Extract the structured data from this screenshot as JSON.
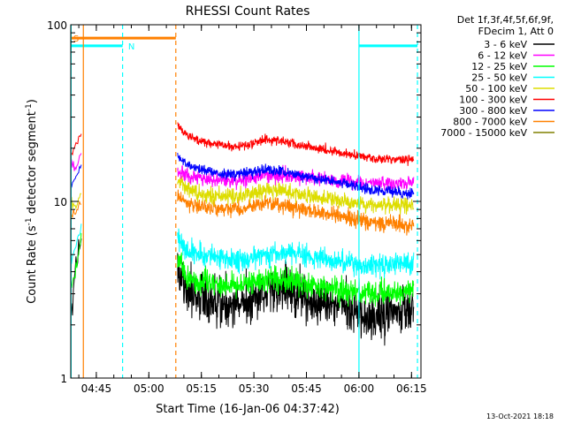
{
  "chart_data": {
    "type": "line",
    "title": "RHESSI Count Rates",
    "xlabel": "Start Time (16-Jan-06 04:37:42)",
    "ylabel": "Count Rate (s",
    "ylabel_sup": "-1",
    "ylabel_mid": " detector segment",
    "ylabel_end": ")",
    "y_scale": "log",
    "ylim": [
      1,
      100
    ],
    "xlim_minutes": [
      0,
      100
    ],
    "x_ticks": [
      {
        "label": "04:45",
        "min": 7.3
      },
      {
        "label": "05:00",
        "min": 22.3
      },
      {
        "label": "05:15",
        "min": 37.3
      },
      {
        "label": "05:30",
        "min": 52.3
      },
      {
        "label": "05:45",
        "min": 67.3
      },
      {
        "label": "06:00",
        "min": 82.3
      },
      {
        "label": "06:15",
        "min": 97.3
      }
    ],
    "y_ticks": [
      {
        "label": "1",
        "value": 1
      },
      {
        "label": "10",
        "value": 10
      },
      {
        "label": "100",
        "value": 100
      }
    ],
    "legend_header": [
      "Det 1f,3f,4f,5f,6f,9f,",
      "FDecim 1, Att 0"
    ],
    "series": [
      {
        "name": "3 - 6 keV",
        "color": "#000000",
        "pre": [
          [
            0,
            3.0
          ],
          [
            0.5,
            2.5
          ],
          [
            1.5,
            4.5
          ],
          [
            3,
            6.5
          ]
        ],
        "post": [
          [
            30.5,
            4.2
          ],
          [
            33,
            3.1
          ],
          [
            38,
            2.8
          ],
          [
            45,
            2.6
          ],
          [
            52,
            2.7
          ],
          [
            57,
            3.2
          ],
          [
            62,
            3.1
          ],
          [
            70,
            2.7
          ],
          [
            78,
            2.5
          ],
          [
            86,
            2.2
          ],
          [
            92,
            2.3
          ],
          [
            98,
            2.4
          ]
        ],
        "noise": 0.13
      },
      {
        "name": "6 - 12 keV",
        "color": "#ff00ff",
        "pre": [
          [
            0,
            17
          ],
          [
            1.5,
            15
          ],
          [
            3,
            19
          ]
        ],
        "post": [
          [
            30.5,
            15
          ],
          [
            34,
            13.8
          ],
          [
            40,
            13.2
          ],
          [
            48,
            13.0
          ],
          [
            56,
            14.2
          ],
          [
            62,
            14.0
          ],
          [
            70,
            13.5
          ],
          [
            78,
            13.0
          ],
          [
            86,
            12.6
          ],
          [
            98,
            12.8
          ]
        ],
        "noise": 0.04
      },
      {
        "name": "12 - 25 keV",
        "color": "#00ff00",
        "pre": [
          [
            0,
            3.2
          ],
          [
            1.5,
            4.2
          ],
          [
            3,
            6
          ]
        ],
        "post": [
          [
            30.5,
            5.0
          ],
          [
            33,
            3.7
          ],
          [
            40,
            3.4
          ],
          [
            48,
            3.3
          ],
          [
            56,
            3.7
          ],
          [
            62,
            3.6
          ],
          [
            70,
            3.3
          ],
          [
            78,
            3.1
          ],
          [
            86,
            3.0
          ],
          [
            98,
            3.1
          ]
        ],
        "noise": 0.07
      },
      {
        "name": "25 - 50 keV",
        "color": "#00ffff",
        "pre": [
          [
            0,
            4.5
          ],
          [
            1.5,
            5.5
          ],
          [
            3,
            7.5
          ]
        ],
        "post": [
          [
            30.5,
            6.2
          ],
          [
            33,
            5.2
          ],
          [
            40,
            4.9
          ],
          [
            48,
            4.6
          ],
          [
            56,
            5.0
          ],
          [
            62,
            5.1
          ],
          [
            70,
            4.8
          ],
          [
            78,
            4.5
          ],
          [
            86,
            4.3
          ],
          [
            98,
            4.5
          ]
        ],
        "noise": 0.06
      },
      {
        "name": "50 - 100 keV",
        "color": "#dddd00",
        "pre": [
          [
            0,
            10
          ],
          [
            1.5,
            9.5
          ],
          [
            3,
            11
          ]
        ],
        "post": [
          [
            30.5,
            13
          ],
          [
            34,
            11.5
          ],
          [
            40,
            10.8
          ],
          [
            48,
            10.7
          ],
          [
            56,
            11.6
          ],
          [
            62,
            11.3
          ],
          [
            70,
            10.6
          ],
          [
            78,
            10.0
          ],
          [
            86,
            9.5
          ],
          [
            98,
            9.5
          ]
        ],
        "noise": 0.045
      },
      {
        "name": "100 - 300 keV",
        "color": "#ff0000",
        "pre": [
          [
            0,
            18
          ],
          [
            1.5,
            21
          ],
          [
            3,
            24
          ]
        ],
        "post": [
          [
            30.5,
            27
          ],
          [
            34,
            23
          ],
          [
            40,
            21.2
          ],
          [
            48,
            20.3
          ],
          [
            56,
            22.6
          ],
          [
            62,
            21.5
          ],
          [
            70,
            20.0
          ],
          [
            78,
            18.8
          ],
          [
            86,
            17.5
          ],
          [
            98,
            17.2
          ]
        ],
        "noise": 0.025
      },
      {
        "name": "300 - 800 keV",
        "color": "#0000ff",
        "pre": [
          [
            0,
            12
          ],
          [
            1.5,
            14
          ],
          [
            3,
            16
          ]
        ],
        "post": [
          [
            30.5,
            18
          ],
          [
            34,
            15.7
          ],
          [
            40,
            14.6
          ],
          [
            48,
            14.1
          ],
          [
            56,
            15.2
          ],
          [
            62,
            14.5
          ],
          [
            70,
            13.5
          ],
          [
            78,
            12.6
          ],
          [
            86,
            11.6
          ],
          [
            98,
            11.0
          ]
        ],
        "noise": 0.03
      },
      {
        "name": "800 - 7000 keV",
        "color": "#ff8000",
        "pre": [
          [
            0,
            8
          ],
          [
            1.5,
            9
          ],
          [
            3,
            10
          ]
        ],
        "post": [
          [
            30.5,
            11
          ],
          [
            34,
            9.6
          ],
          [
            40,
            9.2
          ],
          [
            48,
            9.0
          ],
          [
            56,
            9.8
          ],
          [
            62,
            9.4
          ],
          [
            70,
            8.8
          ],
          [
            78,
            8.2
          ],
          [
            86,
            7.6
          ],
          [
            98,
            7.3
          ]
        ],
        "noise": 0.045
      },
      {
        "name": "7000 - 15000 keV",
        "color": "#808000",
        "pre": [],
        "post": [],
        "noise": 0
      }
    ],
    "annotations": [
      {
        "kind": "bar",
        "label": "S",
        "color": "#ff8000",
        "x_from": 0,
        "x_to": 30.0,
        "y": 84,
        "labelled": true
      },
      {
        "kind": "bar",
        "label": "N",
        "color": "#00ffff",
        "x_from": 0,
        "x_to": 14.8,
        "y": 76,
        "labelled": true
      },
      {
        "kind": "bar",
        "label": "",
        "color": "#00ffff",
        "x_from": 82.3,
        "x_to": 99.0,
        "y": 76,
        "labelled": false
      },
      {
        "kind": "vline",
        "color": "#ff8000",
        "x": 3.6,
        "style": "solid"
      },
      {
        "kind": "vline",
        "color": "#ff8000",
        "x": 30.0,
        "style": "dashed"
      },
      {
        "kind": "vline",
        "color": "#00ffff",
        "x": 0.1,
        "style": "solid"
      },
      {
        "kind": "vline",
        "color": "#00ffff",
        "x": 14.8,
        "style": "dashed"
      },
      {
        "kind": "vline",
        "color": "#00ffff",
        "x": 82.3,
        "style": "solid"
      },
      {
        "kind": "vline",
        "color": "#00ffff",
        "x": 99.0,
        "style": "dashed"
      }
    ],
    "timestamp": "13-Oct-2021 18:18"
  }
}
